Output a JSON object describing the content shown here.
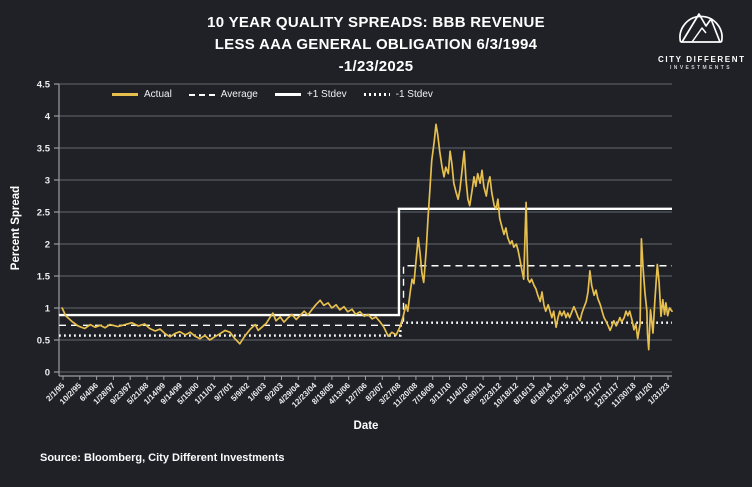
{
  "header": {
    "title": "10 YEAR QUALITY SPREADS: BBB REVENUE LESS AAA GENERAL OBLIGATION 6/3/1994 -1/23/2025",
    "brand": {
      "name": "CITY DIFFERENT",
      "sub": "INVESTMENTS"
    }
  },
  "footer": {
    "source": "Source: Bloomberg, City Different Investments"
  },
  "colors": {
    "background": "#1f2126",
    "actual_gold": "#e6bf4e",
    "stat_lines": "#ffffff",
    "grid": "#63666c",
    "axis": "#9a9da2",
    "tick_text": "#ededee"
  },
  "chart_data": {
    "type": "line",
    "title": "10 YEAR QUALITY SPREADS: BBB REVENUE LESS AAA GENERAL OBLIGATION 6/3/1994 -1/23/2025",
    "xlabel": "Date",
    "ylabel": "Percent Spread",
    "ylim": [
      0,
      4.5
    ],
    "grid": true,
    "legend_position": "top-left-inside",
    "y_ticks": [
      "0",
      "0.5",
      "1",
      "1.5",
      "2",
      "2.5",
      "3",
      "3.5",
      "4",
      "4.5"
    ],
    "x_tick_labels": [
      "2/1/95",
      "10/2/95",
      "6/4/96",
      "1/28/97",
      "9/23/97",
      "5/21/98",
      "1/14/99",
      "9/14/99",
      "5/15/00",
      "1/11/01",
      "9/7/01",
      "5/9/02",
      "1/6/03",
      "9/2/03",
      "4/29/04",
      "12/23/04",
      "8/18/05",
      "4/13/06",
      "12/7/06",
      "8/2/07",
      "3/27/08",
      "11/20/08",
      "7/16/09",
      "3/11/10",
      "11/4/10",
      "6/30/11",
      "2/23/12",
      "10/18/12",
      "8/16/13",
      "6/18/14",
      "5/13/15",
      "3/21/16",
      "2/1/17",
      "12/31/17",
      "11/30/18",
      "4/1/20",
      "1/31/23"
    ],
    "legend": {
      "items": [
        {
          "label": "Actual",
          "series": "actual",
          "style": "solid-gold"
        },
        {
          "label": "Average",
          "series": "average",
          "style": "dashed-white"
        },
        {
          "label": "+1 Stdev",
          "series": "plus1-stdev",
          "style": "solid-white"
        },
        {
          "label": "-1 Stdev",
          "series": "minus1-stdev",
          "style": "dotted-white"
        }
      ]
    },
    "regimes": {
      "description_pre": "6/3/1994 to ~3/27/08",
      "description_post": "~3/27/08 to 1/23/2025",
      "average": {
        "pre": 0.73,
        "post": 1.66,
        "break_frac": 0.562
      },
      "plus1_stdev": {
        "pre": 0.89,
        "post": 2.55,
        "break_frac": 0.5546
      },
      "minus1_stdev": {
        "pre": 0.57,
        "post": 0.77,
        "break_frac": 0.557
      }
    },
    "actual_series_x_as_axis_fraction": [
      [
        0.005,
        1.0
      ],
      [
        0.011,
        0.88
      ],
      [
        0.021,
        0.79
      ],
      [
        0.031,
        0.72
      ],
      [
        0.042,
        0.68
      ],
      [
        0.051,
        0.74
      ],
      [
        0.059,
        0.7
      ],
      [
        0.067,
        0.73
      ],
      [
        0.075,
        0.69
      ],
      [
        0.083,
        0.74
      ],
      [
        0.096,
        0.71
      ],
      [
        0.108,
        0.74
      ],
      [
        0.119,
        0.77
      ],
      [
        0.129,
        0.72
      ],
      [
        0.14,
        0.75
      ],
      [
        0.148,
        0.68
      ],
      [
        0.157,
        0.64
      ],
      [
        0.165,
        0.67
      ],
      [
        0.173,
        0.6
      ],
      [
        0.181,
        0.55
      ],
      [
        0.189,
        0.6
      ],
      [
        0.197,
        0.63
      ],
      [
        0.206,
        0.58
      ],
      [
        0.214,
        0.62
      ],
      [
        0.222,
        0.56
      ],
      [
        0.23,
        0.52
      ],
      [
        0.238,
        0.57
      ],
      [
        0.246,
        0.5
      ],
      [
        0.254,
        0.55
      ],
      [
        0.263,
        0.6
      ],
      [
        0.271,
        0.65
      ],
      [
        0.279,
        0.62
      ],
      [
        0.287,
        0.52
      ],
      [
        0.295,
        0.44
      ],
      [
        0.303,
        0.56
      ],
      [
        0.312,
        0.67
      ],
      [
        0.32,
        0.74
      ],
      [
        0.325,
        0.65
      ],
      [
        0.331,
        0.7
      ],
      [
        0.338,
        0.76
      ],
      [
        0.344,
        0.85
      ],
      [
        0.349,
        0.92
      ],
      [
        0.354,
        0.8
      ],
      [
        0.361,
        0.86
      ],
      [
        0.367,
        0.78
      ],
      [
        0.374,
        0.85
      ],
      [
        0.38,
        0.9
      ],
      [
        0.387,
        0.82
      ],
      [
        0.393,
        0.88
      ],
      [
        0.4,
        0.95
      ],
      [
        0.406,
        0.89
      ],
      [
        0.413,
        0.98
      ],
      [
        0.419,
        1.05
      ],
      [
        0.426,
        1.12
      ],
      [
        0.432,
        1.04
      ],
      [
        0.439,
        1.08
      ],
      [
        0.445,
        1.0
      ],
      [
        0.452,
        1.05
      ],
      [
        0.458,
        0.97
      ],
      [
        0.465,
        1.02
      ],
      [
        0.471,
        0.94
      ],
      [
        0.478,
        0.98
      ],
      [
        0.484,
        0.9
      ],
      [
        0.491,
        0.94
      ],
      [
        0.498,
        0.87
      ],
      [
        0.504,
        0.9
      ],
      [
        0.511,
        0.83
      ],
      [
        0.517,
        0.86
      ],
      [
        0.524,
        0.78
      ],
      [
        0.53,
        0.7
      ],
      [
        0.537,
        0.56
      ],
      [
        0.543,
        0.62
      ],
      [
        0.55,
        0.58
      ],
      [
        0.556,
        0.7
      ],
      [
        0.561,
        0.85
      ],
      [
        0.566,
        1.05
      ],
      [
        0.569,
        0.95
      ],
      [
        0.573,
        1.25
      ],
      [
        0.576,
        1.45
      ],
      [
        0.579,
        1.38
      ],
      [
        0.582,
        1.7
      ],
      [
        0.586,
        2.1
      ],
      [
        0.589,
        1.85
      ],
      [
        0.592,
        1.55
      ],
      [
        0.595,
        1.4
      ],
      [
        0.599,
        1.9
      ],
      [
        0.602,
        2.4
      ],
      [
        0.605,
        2.85
      ],
      [
        0.608,
        3.3
      ],
      [
        0.612,
        3.6
      ],
      [
        0.615,
        3.87
      ],
      [
        0.618,
        3.7
      ],
      [
        0.621,
        3.45
      ],
      [
        0.625,
        3.2
      ],
      [
        0.628,
        3.05
      ],
      [
        0.631,
        3.2
      ],
      [
        0.635,
        3.1
      ],
      [
        0.638,
        3.45
      ],
      [
        0.641,
        3.25
      ],
      [
        0.644,
        2.95
      ],
      [
        0.648,
        2.8
      ],
      [
        0.651,
        2.7
      ],
      [
        0.654,
        2.85
      ],
      [
        0.657,
        3.1
      ],
      [
        0.661,
        3.45
      ],
      [
        0.664,
        3.0
      ],
      [
        0.667,
        2.7
      ],
      [
        0.67,
        2.6
      ],
      [
        0.674,
        2.85
      ],
      [
        0.677,
        3.05
      ],
      [
        0.68,
        2.9
      ],
      [
        0.683,
        3.1
      ],
      [
        0.687,
        2.95
      ],
      [
        0.69,
        3.15
      ],
      [
        0.693,
        2.9
      ],
      [
        0.697,
        2.75
      ],
      [
        0.7,
        2.95
      ],
      [
        0.703,
        3.05
      ],
      [
        0.706,
        2.8
      ],
      [
        0.71,
        2.6
      ],
      [
        0.713,
        2.55
      ],
      [
        0.716,
        2.7
      ],
      [
        0.719,
        2.4
      ],
      [
        0.723,
        2.25
      ],
      [
        0.726,
        2.15
      ],
      [
        0.729,
        2.25
      ],
      [
        0.732,
        2.1
      ],
      [
        0.736,
        2.0
      ],
      [
        0.739,
        2.05
      ],
      [
        0.742,
        1.95
      ],
      [
        0.746,
        2.0
      ],
      [
        0.749,
        1.9
      ],
      [
        0.752,
        1.75
      ],
      [
        0.755,
        1.6
      ],
      [
        0.758,
        1.45
      ],
      [
        0.762,
        2.65
      ],
      [
        0.765,
        1.45
      ],
      [
        0.768,
        1.4
      ],
      [
        0.771,
        1.45
      ],
      [
        0.775,
        1.35
      ],
      [
        0.778,
        1.3
      ],
      [
        0.781,
        1.2
      ],
      [
        0.785,
        1.1
      ],
      [
        0.788,
        1.25
      ],
      [
        0.791,
        1.05
      ],
      [
        0.794,
        0.95
      ],
      [
        0.798,
        1.05
      ],
      [
        0.801,
        0.95
      ],
      [
        0.804,
        0.85
      ],
      [
        0.807,
        0.95
      ],
      [
        0.811,
        0.7
      ],
      [
        0.814,
        0.85
      ],
      [
        0.817,
        0.95
      ],
      [
        0.82,
        0.88
      ],
      [
        0.824,
        0.95
      ],
      [
        0.827,
        0.85
      ],
      [
        0.83,
        0.92
      ],
      [
        0.833,
        0.85
      ],
      [
        0.837,
        0.95
      ],
      [
        0.84,
        1.02
      ],
      [
        0.843,
        0.95
      ],
      [
        0.847,
        0.85
      ],
      [
        0.85,
        0.8
      ],
      [
        0.853,
        0.92
      ],
      [
        0.856,
        1.0
      ],
      [
        0.86,
        1.1
      ],
      [
        0.863,
        1.25
      ],
      [
        0.866,
        1.58
      ],
      [
        0.869,
        1.35
      ],
      [
        0.873,
        1.2
      ],
      [
        0.876,
        1.28
      ],
      [
        0.879,
        1.15
      ],
      [
        0.883,
        1.05
      ],
      [
        0.886,
        0.95
      ],
      [
        0.889,
        0.85
      ],
      [
        0.892,
        0.8
      ],
      [
        0.896,
        0.72
      ],
      [
        0.899,
        0.65
      ],
      [
        0.902,
        0.72
      ],
      [
        0.905,
        0.8
      ],
      [
        0.909,
        0.72
      ],
      [
        0.912,
        0.78
      ],
      [
        0.915,
        0.85
      ],
      [
        0.918,
        0.78
      ],
      [
        0.922,
        0.85
      ],
      [
        0.925,
        0.95
      ],
      [
        0.928,
        0.88
      ],
      [
        0.931,
        0.95
      ],
      [
        0.935,
        0.8
      ],
      [
        0.938,
        0.66
      ],
      [
        0.941,
        0.75
      ],
      [
        0.944,
        0.52
      ],
      [
        0.948,
        0.75
      ],
      [
        0.95,
        2.08
      ],
      [
        0.953,
        1.6
      ],
      [
        0.956,
        1.23
      ],
      [
        0.959,
        0.95
      ],
      [
        0.96,
        0.6
      ],
      [
        0.962,
        0.35
      ],
      [
        0.965,
        0.97
      ],
      [
        0.969,
        0.61
      ],
      [
        0.972,
        1.1
      ],
      [
        0.976,
        1.68
      ],
      [
        0.979,
        1.4
      ],
      [
        0.982,
        0.87
      ],
      [
        0.985,
        1.13
      ],
      [
        0.988,
        0.9
      ],
      [
        0.99,
        1.08
      ],
      [
        0.993,
        0.88
      ],
      [
        0.996,
        1.0
      ],
      [
        1.0,
        0.95
      ]
    ]
  }
}
